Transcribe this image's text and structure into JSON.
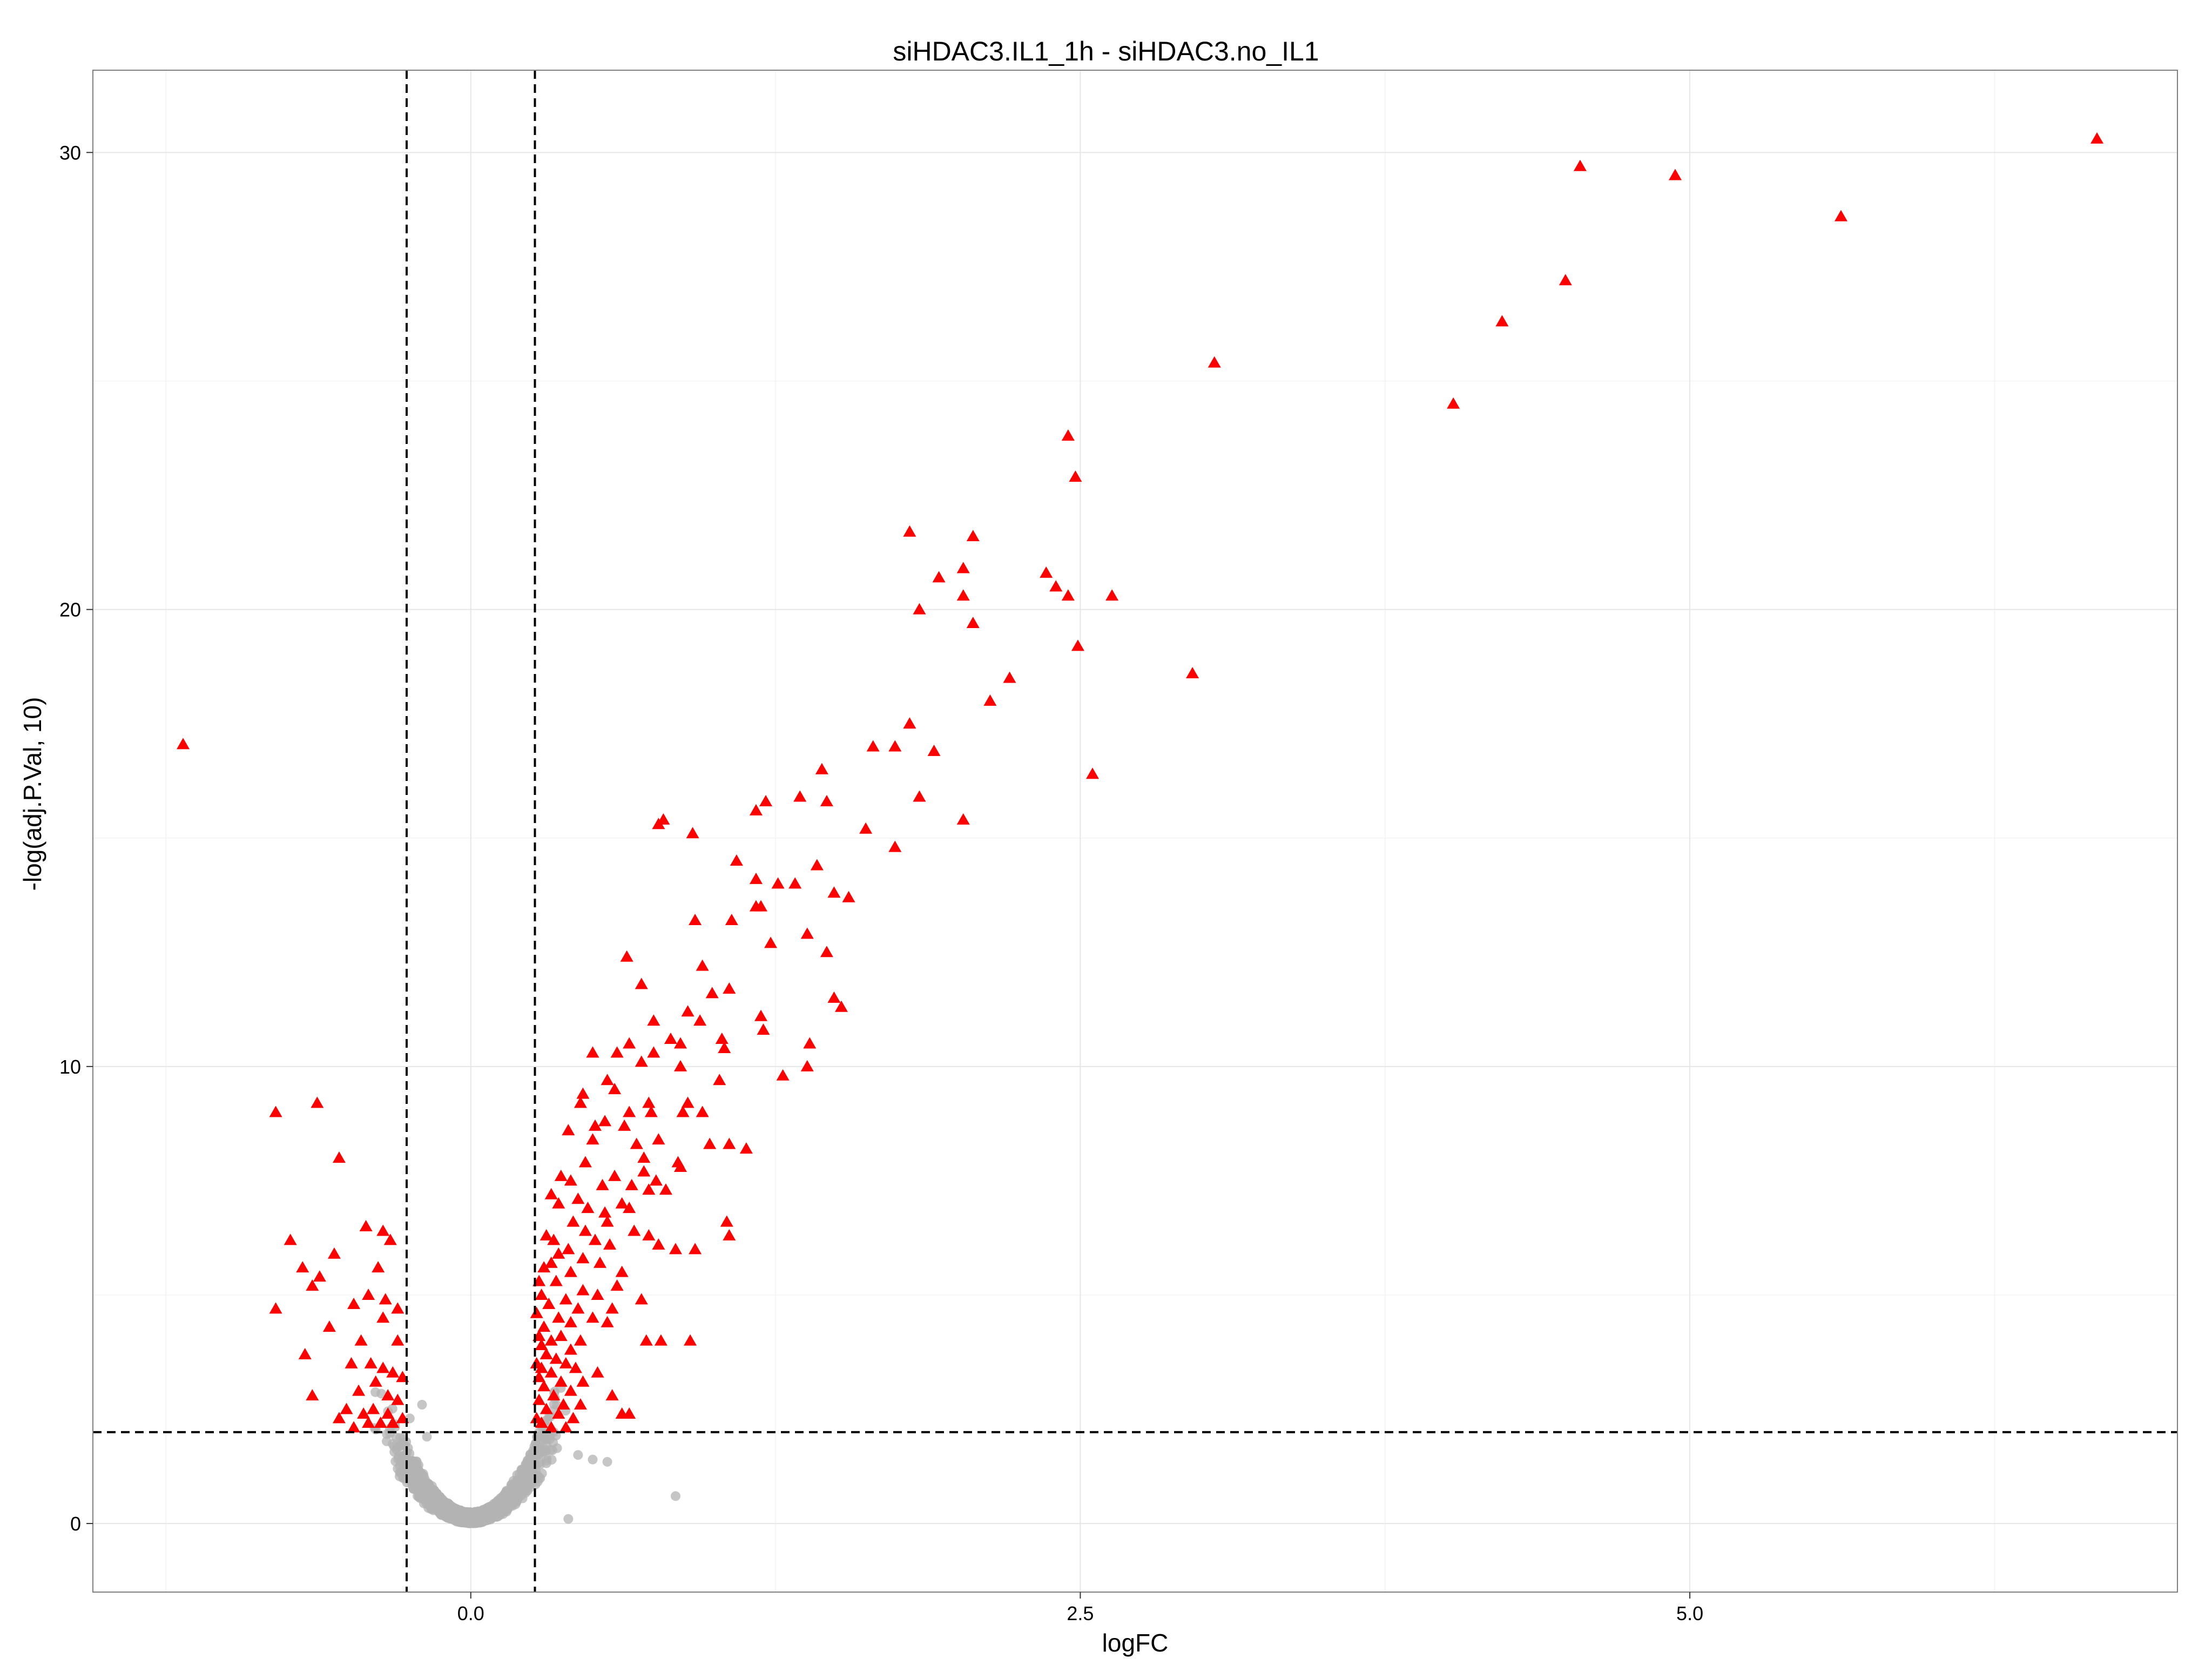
{
  "chart_data": {
    "type": "scatter",
    "title": "siHDAC3.IL1_1h - siHDAC3.no_IL1",
    "xlabel": "logFC",
    "ylabel": "-log(adj.P.Val, 10)",
    "xlim": [
      -1.55,
      7.0
    ],
    "ylim": [
      -1.5,
      31.8
    ],
    "x_ticks": [
      0.0,
      2.5,
      5.0
    ],
    "x_tick_labels": [
      "0.0",
      "2.5",
      "5.0"
    ],
    "y_ticks": [
      0,
      10,
      20,
      30
    ],
    "y_tick_labels": [
      "0",
      "10",
      "20",
      "30"
    ],
    "grid": true,
    "reference_lines": {
      "vertical_x": [
        -0.263,
        0.263
      ],
      "horizontal_y": 2
    },
    "colors": {
      "significant": "#ff0000",
      "not_significant": "#b3b3b3"
    },
    "series": [
      {
        "marker": "triangle",
        "color": "#ff0000",
        "points": [
          [
            6.67,
            30.3
          ],
          [
            4.55,
            29.7
          ],
          [
            4.94,
            29.5
          ],
          [
            5.62,
            28.6
          ],
          [
            4.49,
            27.2
          ],
          [
            4.23,
            26.3
          ],
          [
            3.05,
            25.4
          ],
          [
            4.03,
            24.5
          ],
          [
            2.45,
            23.8
          ],
          [
            2.48,
            22.9
          ],
          [
            1.8,
            21.7
          ],
          [
            2.06,
            21.6
          ],
          [
            2.02,
            20.9
          ],
          [
            2.36,
            20.8
          ],
          [
            1.92,
            20.7
          ],
          [
            2.4,
            20.5
          ],
          [
            2.63,
            20.3
          ],
          [
            2.02,
            20.3
          ],
          [
            2.45,
            20.3
          ],
          [
            1.84,
            20.0
          ],
          [
            2.06,
            19.7
          ],
          [
            2.49,
            19.2
          ],
          [
            2.96,
            18.6
          ],
          [
            2.21,
            18.5
          ],
          [
            2.13,
            18.0
          ],
          [
            1.8,
            17.5
          ],
          [
            1.9,
            16.9
          ],
          [
            1.65,
            17.0
          ],
          [
            1.74,
            17.0
          ],
          [
            -1.18,
            17.05
          ],
          [
            2.55,
            16.4
          ],
          [
            1.44,
            16.5
          ],
          [
            1.84,
            15.9
          ],
          [
            1.35,
            15.9
          ],
          [
            1.21,
            15.8
          ],
          [
            1.46,
            15.8
          ],
          [
            1.17,
            15.6
          ],
          [
            2.02,
            15.4
          ],
          [
            0.77,
            15.3
          ],
          [
            0.79,
            15.4
          ],
          [
            0.91,
            15.1
          ],
          [
            1.62,
            15.2
          ],
          [
            1.74,
            14.8
          ],
          [
            1.09,
            14.5
          ],
          [
            1.42,
            14.4
          ],
          [
            1.17,
            14.1
          ],
          [
            1.26,
            14.0
          ],
          [
            1.33,
            14.0
          ],
          [
            1.49,
            13.8
          ],
          [
            1.55,
            13.7
          ],
          [
            1.17,
            13.5
          ],
          [
            1.19,
            13.5
          ],
          [
            1.07,
            13.2
          ],
          [
            0.92,
            13.2
          ],
          [
            1.38,
            12.9
          ],
          [
            1.23,
            12.7
          ],
          [
            1.46,
            12.5
          ],
          [
            0.64,
            12.4
          ],
          [
            0.95,
            12.2
          ],
          [
            0.7,
            11.8
          ],
          [
            1.06,
            11.7
          ],
          [
            0.99,
            11.6
          ],
          [
            1.49,
            11.5
          ],
          [
            1.52,
            11.3
          ],
          [
            0.89,
            11.2
          ],
          [
            0.94,
            11.0
          ],
          [
            1.19,
            11.1
          ],
          [
            0.75,
            11.0
          ],
          [
            1.2,
            10.8
          ],
          [
            0.82,
            10.6
          ],
          [
            1.03,
            10.6
          ],
          [
            0.65,
            10.5
          ],
          [
            1.39,
            10.5
          ],
          [
            0.86,
            10.5
          ],
          [
            1.04,
            10.4
          ],
          [
            0.6,
            10.3
          ],
          [
            0.75,
            10.3
          ],
          [
            0.5,
            10.3
          ],
          [
            0.7,
            10.1
          ],
          [
            0.86,
            10.0
          ],
          [
            1.38,
            10.0
          ],
          [
            1.28,
            9.8
          ],
          [
            1.02,
            9.7
          ],
          [
            0.56,
            9.7
          ],
          [
            0.59,
            9.5
          ],
          [
            0.46,
            9.4
          ],
          [
            0.45,
            9.2
          ],
          [
            0.73,
            9.2
          ],
          [
            0.89,
            9.2
          ],
          [
            0.87,
            9.0
          ],
          [
            0.65,
            9.0
          ],
          [
            0.74,
            9.0
          ],
          [
            0.95,
            9.0
          ],
          [
            0.55,
            8.8
          ],
          [
            0.51,
            8.7
          ],
          [
            0.63,
            8.7
          ],
          [
            0.4,
            8.6
          ],
          [
            0.5,
            8.4
          ],
          [
            0.77,
            8.4
          ],
          [
            0.68,
            8.3
          ],
          [
            1.06,
            8.3
          ],
          [
            1.13,
            8.2
          ],
          [
            0.71,
            8.0
          ],
          [
            0.98,
            8.3
          ],
          [
            0.47,
            7.9
          ],
          [
            0.85,
            7.9
          ],
          [
            0.71,
            7.7
          ],
          [
            0.37,
            7.6
          ],
          [
            0.86,
            7.8
          ],
          [
            0.59,
            7.6
          ],
          [
            0.76,
            7.5
          ],
          [
            0.41,
            7.5
          ],
          [
            0.66,
            7.4
          ],
          [
            0.54,
            7.4
          ],
          [
            0.73,
            7.3
          ],
          [
            0.33,
            7.2
          ],
          [
            0.8,
            7.3
          ],
          [
            0.44,
            7.1
          ],
          [
            0.62,
            7.0
          ],
          [
            0.36,
            7.0
          ],
          [
            0.48,
            6.9
          ],
          [
            0.55,
            6.8
          ],
          [
            0.65,
            6.9
          ],
          [
            0.56,
            6.6
          ],
          [
            0.42,
            6.6
          ],
          [
            0.67,
            6.4
          ],
          [
            1.05,
            6.6
          ],
          [
            0.47,
            6.4
          ],
          [
            0.31,
            6.3
          ],
          [
            0.73,
            6.3
          ],
          [
            0.51,
            6.2
          ],
          [
            0.34,
            6.2
          ],
          [
            0.57,
            6.1
          ],
          [
            1.06,
            6.3
          ],
          [
            0.84,
            6.0
          ],
          [
            0.77,
            6.1
          ],
          [
            0.92,
            6.0
          ],
          [
            0.4,
            6.0
          ],
          [
            0.36,
            5.9
          ],
          [
            0.46,
            5.8
          ],
          [
            0.33,
            5.7
          ],
          [
            0.53,
            5.7
          ],
          [
            0.3,
            5.6
          ],
          [
            0.62,
            5.5
          ],
          [
            0.41,
            5.5
          ],
          [
            0.28,
            5.3
          ],
          [
            0.35,
            5.3
          ],
          [
            0.6,
            5.2
          ],
          [
            0.46,
            5.1
          ],
          [
            0.29,
            5.0
          ],
          [
            0.52,
            5.0
          ],
          [
            0.7,
            4.9
          ],
          [
            0.39,
            4.9
          ],
          [
            0.32,
            4.8
          ],
          [
            0.44,
            4.7
          ],
          [
            0.58,
            4.7
          ],
          [
            0.27,
            4.6
          ],
          [
            0.36,
            4.5
          ],
          [
            0.5,
            4.5
          ],
          [
            0.41,
            4.4
          ],
          [
            0.3,
            4.3
          ],
          [
            0.56,
            4.4
          ],
          [
            0.28,
            4.1
          ],
          [
            0.37,
            4.1
          ],
          [
            0.33,
            4.0
          ],
          [
            0.45,
            4.0
          ],
          [
            0.29,
            3.9
          ],
          [
            0.41,
            3.8
          ],
          [
            0.72,
            4.0
          ],
          [
            0.78,
            4.0
          ],
          [
            0.9,
            4.0
          ],
          [
            0.31,
            3.7
          ],
          [
            0.35,
            3.6
          ],
          [
            0.27,
            3.5
          ],
          [
            0.39,
            3.5
          ],
          [
            0.29,
            3.4
          ],
          [
            0.43,
            3.4
          ],
          [
            0.33,
            3.3
          ],
          [
            0.52,
            3.3
          ],
          [
            0.28,
            3.2
          ],
          [
            0.37,
            3.1
          ],
          [
            0.46,
            3.1
          ],
          [
            0.3,
            3.0
          ],
          [
            0.41,
            2.9
          ],
          [
            0.34,
            2.8
          ],
          [
            0.58,
            2.8
          ],
          [
            0.28,
            2.7
          ],
          [
            0.38,
            2.6
          ],
          [
            0.45,
            2.6
          ],
          [
            0.31,
            2.5
          ],
          [
            0.36,
            2.4
          ],
          [
            0.27,
            2.3
          ],
          [
            0.42,
            2.3
          ],
          [
            0.29,
            2.2
          ],
          [
            0.33,
            2.1
          ],
          [
            0.39,
            2.1
          ],
          [
            0.65,
            2.4
          ],
          [
            0.62,
            2.4
          ],
          [
            -0.8,
            9.0
          ],
          [
            -0.63,
            9.2
          ],
          [
            -0.54,
            8.0
          ],
          [
            -0.74,
            6.2
          ],
          [
            -0.43,
            6.5
          ],
          [
            -0.36,
            6.4
          ],
          [
            -0.33,
            6.2
          ],
          [
            -0.56,
            5.9
          ],
          [
            -0.69,
            5.6
          ],
          [
            -0.38,
            5.6
          ],
          [
            -0.62,
            5.4
          ],
          [
            -0.65,
            5.2
          ],
          [
            -0.42,
            5.0
          ],
          [
            -0.35,
            4.9
          ],
          [
            -0.8,
            4.7
          ],
          [
            -0.48,
            4.8
          ],
          [
            -0.3,
            4.7
          ],
          [
            -0.36,
            4.5
          ],
          [
            -0.58,
            4.3
          ],
          [
            -0.45,
            4.0
          ],
          [
            -0.3,
            4.0
          ],
          [
            -0.68,
            3.7
          ],
          [
            -0.49,
            3.5
          ],
          [
            -0.41,
            3.5
          ],
          [
            -0.36,
            3.4
          ],
          [
            -0.32,
            3.3
          ],
          [
            -0.28,
            3.2
          ],
          [
            -0.39,
            3.1
          ],
          [
            -0.46,
            2.9
          ],
          [
            -0.34,
            2.8
          ],
          [
            -0.65,
            2.8
          ],
          [
            -0.3,
            2.7
          ],
          [
            -0.51,
            2.5
          ],
          [
            -0.4,
            2.5
          ],
          [
            -0.34,
            2.4
          ],
          [
            -0.44,
            2.4
          ],
          [
            -0.54,
            2.3
          ],
          [
            -0.28,
            2.3
          ],
          [
            -0.37,
            2.2
          ],
          [
            -0.32,
            2.2
          ],
          [
            -0.48,
            2.1
          ],
          [
            -0.42,
            2.2
          ]
        ]
      }
    ]
  }
}
